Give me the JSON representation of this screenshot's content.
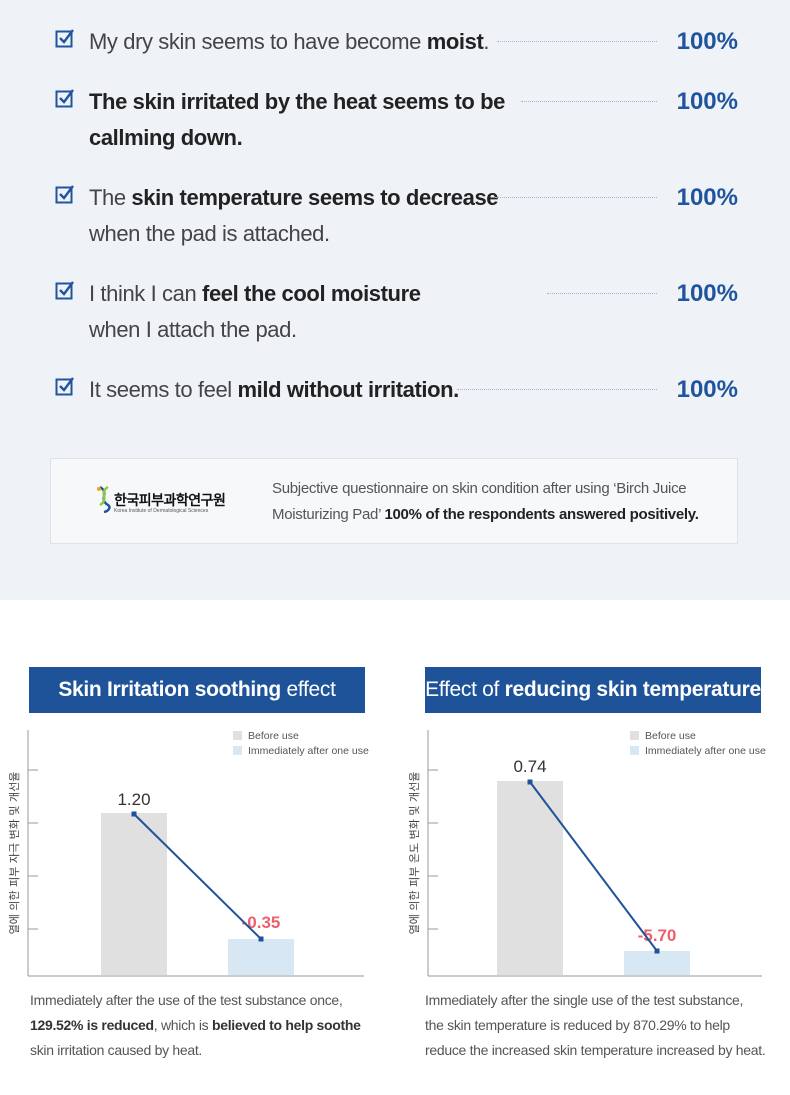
{
  "survey": {
    "items": [
      {
        "pre": "My dry skin seems to have become ",
        "bold": "moist",
        "post": ".",
        "line2": "",
        "pct": "100%"
      },
      {
        "pre": "",
        "bold": "The skin irritated by the heat seems to be",
        "post": "",
        "line2": "callming down.",
        "line2_bold": true,
        "pct": "100%"
      },
      {
        "pre": "The ",
        "bold": "skin temperature seems to decrease",
        "post": "",
        "line2": "when the pad is attached.",
        "line2_bold": false,
        "pct": "100%"
      },
      {
        "pre": "I think I can ",
        "bold": "feel the cool moisture",
        "post": "",
        "line2": "when I attach the pad.",
        "line2_bold": false,
        "pct": "100%"
      },
      {
        "pre": "It seems to feel ",
        "bold": "mild without irritation.",
        "post": "",
        "line2": "",
        "pct": "100%"
      }
    ]
  },
  "note": {
    "logo_korean": "한국피부과학연구원",
    "logo_english": "Korea Institute of Dermatological Sciences",
    "line1": "Subjective questionnaire on skin condition after using ‘Birch Juice",
    "line2_pre": "Moisturizing Pad’ ",
    "line2_bold": "100% of the respondents answered positively."
  },
  "chart_data": [
    {
      "type": "bar",
      "title": "Skin Irritation soothing effect",
      "title_bold": "Skin Irritation soothing",
      "title_rest": " effect",
      "ylabel": "열에 의한 피부 자극 변화 및 개선율",
      "series": [
        {
          "name": "Before use"
        },
        {
          "name": "Immediately after one use"
        }
      ],
      "categories": [
        "Before use",
        "Immediately after one use"
      ],
      "values": [
        1.2,
        -0.35
      ],
      "value_labels": [
        "1.20",
        "-0.35"
      ],
      "colors": [
        "#e0e0e0",
        "#d7e8f4"
      ],
      "label_colors": [
        "#333333",
        "#ee5f6d"
      ],
      "line_color": "#1f5399",
      "caption_l1": "Immediately after the use of the test substance once,",
      "caption_l2_bold": "129.52% is reduced",
      "caption_l2_mid": ", which is ",
      "caption_l2_bold2": "believed to help soothe",
      "caption_l3": "skin irritation caused by heat."
    },
    {
      "type": "bar",
      "title": "Effect of reducing skin temperature",
      "title_pre": "Effect of ",
      "title_bold": "reducing skin temperature",
      "ylabel": "열에 의한 피부 온도 변화 및 개선율",
      "series": [
        {
          "name": "Before use"
        },
        {
          "name": "Immediately after one use"
        }
      ],
      "categories": [
        "Before use",
        "Immediately after one use"
      ],
      "values": [
        0.74,
        -5.7
      ],
      "value_labels": [
        "0.74",
        "-5.70"
      ],
      "colors": [
        "#e0e0e0",
        "#d7e8f4"
      ],
      "label_colors": [
        "#333333",
        "#ee5f6d"
      ],
      "line_color": "#1f5399",
      "caption_l1": "Immediately after the single use of the test substance,",
      "caption_l2": "the skin temperature is reduced by 870.29% to help",
      "caption_l3": "reduce the increased skin temperature increased by heat."
    }
  ]
}
